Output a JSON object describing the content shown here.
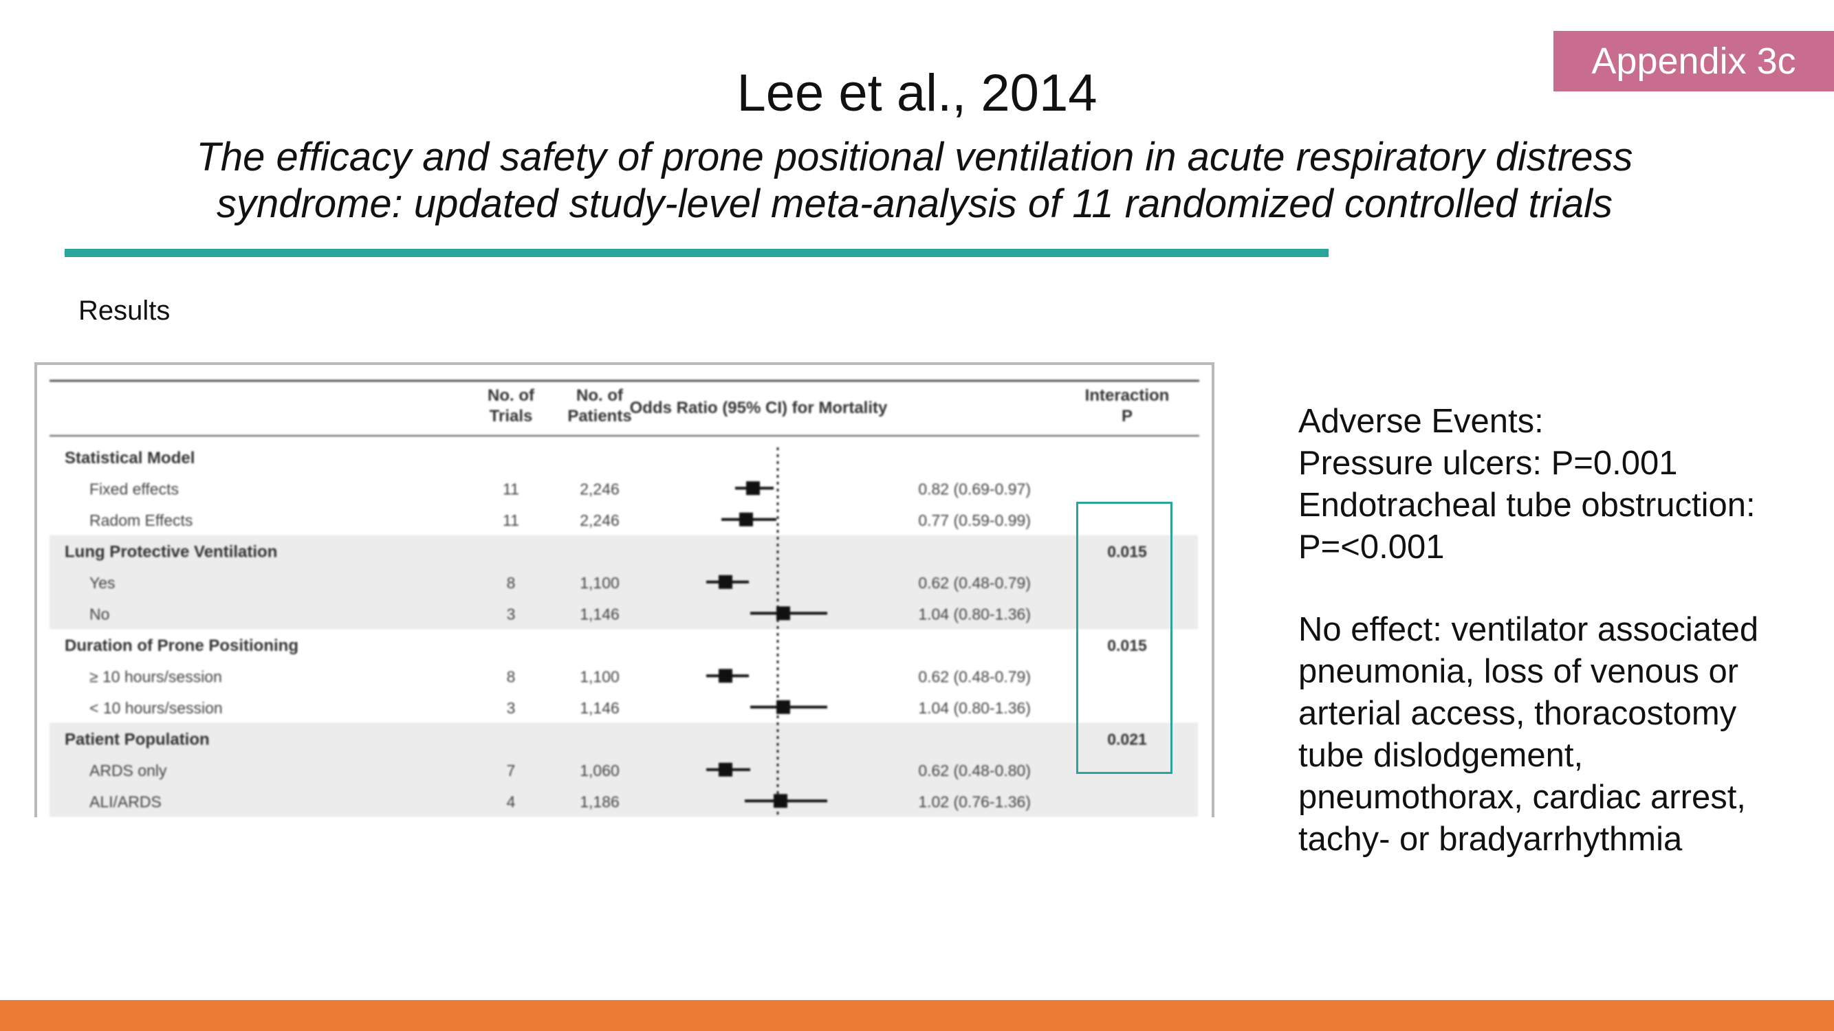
{
  "slide": {
    "badge": "Appendix 3c",
    "title": "Lee et al., 2014",
    "subtitle_line1": "The efficacy and safety of prone positional ventilation in acute respiratory distress",
    "subtitle_line2": "syndrome: updated study-level meta-analysis of 11 randomized controlled trials",
    "results_label": "Results",
    "colors": {
      "accent_teal": "#2aa59b",
      "badge_pink": "#c96d8f",
      "bottom_orange": "#eb7a35"
    }
  },
  "side_text": {
    "heading": "Adverse Events:",
    "line1": "Pressure ulcers: P=0.001",
    "line2": "Endotracheal tube obstruction:",
    "line3": "P=<0.001",
    "no_effect_lines": [
      "No effect: ventilator associated",
      "pneumonia, loss of venous or",
      "arterial access, thoracostomy",
      "tube dislodgement,",
      "pneumothorax, cardiac arrest,",
      "tachy- or bradyarrhythmia"
    ]
  },
  "chart_data": {
    "type": "table",
    "headers": {
      "trials_1": "No. of",
      "trials_2": "Trials",
      "patients_1": "No. of",
      "patients_2": "Patients",
      "or": "Odds Ratio (95% CI) for Mortality",
      "interaction_1": "Interaction",
      "interaction_2": "P"
    },
    "reference_line": 1.0,
    "rows": [
      {
        "kind": "group",
        "label": "Statistical Model",
        "p": "",
        "shade": false
      },
      {
        "kind": "item",
        "label": "Fixed effects",
        "trials": "11",
        "patients": "2,246",
        "or": 0.82,
        "lo": 0.69,
        "hi": 0.97,
        "ci_text": "0.82 (0.69-0.97)",
        "shade": false
      },
      {
        "kind": "item",
        "label": "Radom Effects",
        "trials": "11",
        "patients": "2,246",
        "or": 0.77,
        "lo": 0.59,
        "hi": 0.99,
        "ci_text": "0.77 (0.59-0.99)",
        "shade": false
      },
      {
        "kind": "group",
        "label": "Lung Protective Ventilation",
        "p": "0.015",
        "shade": true
      },
      {
        "kind": "item",
        "label": "Yes",
        "trials": "8",
        "patients": "1,100",
        "or": 0.62,
        "lo": 0.48,
        "hi": 0.79,
        "ci_text": "0.62 (0.48-0.79)",
        "shade": true
      },
      {
        "kind": "item",
        "label": "No",
        "trials": "3",
        "patients": "1,146",
        "or": 1.04,
        "lo": 0.8,
        "hi": 1.36,
        "ci_text": "1.04 (0.80-1.36)",
        "shade": true
      },
      {
        "kind": "group",
        "label": "Duration of Prone Positioning",
        "p": "0.015",
        "shade": false
      },
      {
        "kind": "item",
        "label": "≥ 10 hours/session",
        "trials": "8",
        "patients": "1,100",
        "or": 0.62,
        "lo": 0.48,
        "hi": 0.79,
        "ci_text": "0.62 (0.48-0.79)",
        "shade": false
      },
      {
        "kind": "item",
        "label": "< 10 hours/session",
        "trials": "3",
        "patients": "1,146",
        "or": 1.04,
        "lo": 0.8,
        "hi": 1.36,
        "ci_text": "1.04 (0.80-1.36)",
        "shade": false
      },
      {
        "kind": "group",
        "label": "Patient Population",
        "p": "0.021",
        "shade": true
      },
      {
        "kind": "item",
        "label": "ARDS only",
        "trials": "7",
        "patients": "1,060",
        "or": 0.62,
        "lo": 0.48,
        "hi": 0.8,
        "ci_text": "0.62 (0.48-0.80)",
        "shade": true
      },
      {
        "kind": "item",
        "label": "ALI/ARDS",
        "trials": "4",
        "patients": "1,186",
        "or": 1.02,
        "lo": 0.76,
        "hi": 1.36,
        "ci_text": "1.02 (0.76-1.36)",
        "shade": true
      }
    ]
  }
}
